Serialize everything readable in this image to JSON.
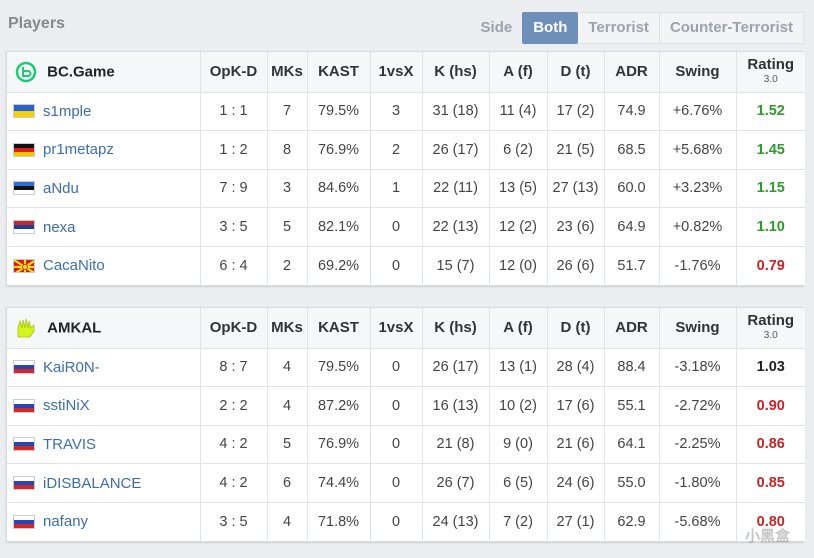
{
  "heading": "Players",
  "side_filter": {
    "label": "Side",
    "options": [
      "Both",
      "Terrorist",
      "Counter-Terrorist"
    ],
    "active": "Both"
  },
  "columns": [
    "OpK-D",
    "MKs",
    "KAST",
    "1vsX",
    "K (hs)",
    "A (f)",
    "D (t)",
    "ADR",
    "Swing",
    "Rating",
    "3.0"
  ],
  "colors": {
    "good": "#2e9b2a",
    "bad": "#c22626",
    "neutral": "#222222",
    "link": "#3d6ea8",
    "accent": "#6d8fb8"
  },
  "teams": [
    {
      "name": "BC.Game",
      "logo_icon": "bc-game-logo-icon",
      "players": [
        {
          "flag": "ukraine-flag-icon",
          "name": "s1mple",
          "opkd": "1 : 1",
          "mks": "7",
          "kast": "79.5%",
          "vsx": "3",
          "khs": "31 (18)",
          "af": "11 (4)",
          "dt": "17 (2)",
          "adr": "74.9",
          "swing": "+6.76%",
          "rating": "1.52",
          "rating_tier": "good"
        },
        {
          "flag": "germany-flag-icon",
          "name": "pr1metapz",
          "opkd": "1 : 2",
          "mks": "8",
          "kast": "76.9%",
          "vsx": "2",
          "khs": "26 (17)",
          "af": "6 (2)",
          "dt": "21 (5)",
          "adr": "68.5",
          "swing": "+5.68%",
          "rating": "1.45",
          "rating_tier": "good"
        },
        {
          "flag": "estonia-flag-icon",
          "name": "aNdu",
          "opkd": "7 : 9",
          "mks": "3",
          "kast": "84.6%",
          "vsx": "1",
          "khs": "22 (11)",
          "af": "13 (5)",
          "dt": "27 (13)",
          "adr": "60.0",
          "swing": "+3.23%",
          "rating": "1.15",
          "rating_tier": "good"
        },
        {
          "flag": "serbia-flag-icon",
          "name": "nexa",
          "opkd": "3 : 5",
          "mks": "5",
          "kast": "82.1%",
          "vsx": "0",
          "khs": "22 (13)",
          "af": "12 (2)",
          "dt": "23 (6)",
          "adr": "64.9",
          "swing": "+0.82%",
          "rating": "1.10",
          "rating_tier": "good"
        },
        {
          "flag": "north-macedonia-flag-icon",
          "name": "CacaNito",
          "opkd": "6 : 4",
          "mks": "2",
          "kast": "69.2%",
          "vsx": "0",
          "khs": "15 (7)",
          "af": "12 (0)",
          "dt": "26 (6)",
          "adr": "51.7",
          "swing": "-1.76%",
          "rating": "0.79",
          "rating_tier": "bad"
        }
      ]
    },
    {
      "name": "AMKAL",
      "logo_icon": "amkal-logo-icon",
      "players": [
        {
          "flag": "russia-flag-icon",
          "name": "KaiR0N-",
          "opkd": "8 : 7",
          "mks": "4",
          "kast": "79.5%",
          "vsx": "0",
          "khs": "26 (17)",
          "af": "13 (1)",
          "dt": "28 (4)",
          "adr": "88.4",
          "swing": "-3.18%",
          "rating": "1.03",
          "rating_tier": "neutral"
        },
        {
          "flag": "russia-flag-icon",
          "name": "sstiNiX",
          "opkd": "2 : 2",
          "mks": "4",
          "kast": "87.2%",
          "vsx": "0",
          "khs": "16 (13)",
          "af": "10 (2)",
          "dt": "17 (6)",
          "adr": "55.1",
          "swing": "-2.72%",
          "rating": "0.90",
          "rating_tier": "bad"
        },
        {
          "flag": "russia-flag-icon",
          "name": "TRAVIS",
          "opkd": "4 : 2",
          "mks": "5",
          "kast": "76.9%",
          "vsx": "0",
          "khs": "21 (8)",
          "af": "9 (0)",
          "dt": "21 (6)",
          "adr": "64.1",
          "swing": "-2.25%",
          "rating": "0.86",
          "rating_tier": "bad"
        },
        {
          "flag": "russia-flag-icon",
          "name": "iDISBALANCE",
          "opkd": "4 : 2",
          "mks": "6",
          "kast": "74.4%",
          "vsx": "0",
          "khs": "26 (7)",
          "af": "6 (5)",
          "dt": "24 (6)",
          "adr": "55.0",
          "swing": "-1.80%",
          "rating": "0.85",
          "rating_tier": "bad"
        },
        {
          "flag": "russia-flag-icon",
          "name": "nafany",
          "opkd": "3 : 5",
          "mks": "4",
          "kast": "71.8%",
          "vsx": "0",
          "khs": "24 (13)",
          "af": "7 (2)",
          "dt": "27 (1)",
          "adr": "62.9",
          "swing": "-5.68%",
          "rating": "0.80",
          "rating_tier": "bad"
        }
      ]
    }
  ],
  "watermark": "小黑盒"
}
